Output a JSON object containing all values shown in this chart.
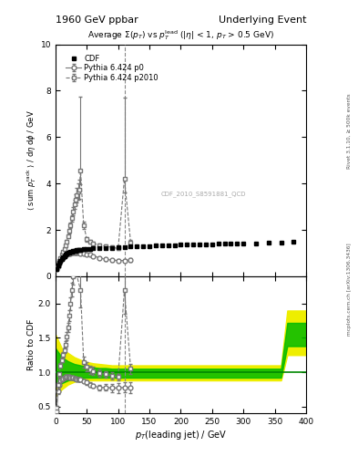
{
  "title_left": "1960 GeV ppbar",
  "title_right": "Underlying Event",
  "plot_title": "Average $\\Sigma(p_T)$ vs $p_T^{\\mathrm{lead}}$ (|$\\eta$| < 1, $p_T$ > 0.5 GeV)",
  "xlabel": "$p_T$(leading jet) / GeV",
  "ylabel_main": "$\\langle$ sum $p_T^{\\rm rack}$ $\\rangle$ / d$\\eta$ d$\\phi$ / GeV",
  "ylabel_ratio": "Ratio to CDF",
  "watermark": "CDF_2010_S8591881_QCD",
  "rivet_label": "Rivet 3.1.10, ≥ 500k events",
  "mcplots_label": "mcplots.cern.ch [arXiv:1306.3436]",
  "xlim": [
    0,
    400
  ],
  "ylim_main": [
    0,
    10
  ],
  "ylim_ratio": [
    0.4,
    2.4
  ],
  "vline_x": 110,
  "cdf_x": [
    2,
    4,
    6,
    8,
    10,
    12,
    14,
    16,
    18,
    20,
    22,
    24,
    26,
    28,
    30,
    32,
    34,
    36,
    38,
    40,
    45,
    50,
    55,
    60,
    70,
    80,
    90,
    100,
    110,
    120,
    130,
    140,
    150,
    160,
    170,
    180,
    190,
    200,
    210,
    220,
    230,
    240,
    250,
    260,
    270,
    280,
    290,
    300,
    320,
    340,
    360,
    380
  ],
  "cdf_y": [
    0.32,
    0.45,
    0.58,
    0.68,
    0.75,
    0.83,
    0.88,
    0.92,
    0.96,
    1.0,
    1.02,
    1.05,
    1.07,
    1.08,
    1.1,
    1.11,
    1.12,
    1.13,
    1.14,
    1.15,
    1.17,
    1.18,
    1.19,
    1.2,
    1.21,
    1.22,
    1.23,
    1.25,
    1.27,
    1.28,
    1.29,
    1.3,
    1.31,
    1.32,
    1.33,
    1.34,
    1.35,
    1.36,
    1.37,
    1.38,
    1.38,
    1.39,
    1.39,
    1.4,
    1.4,
    1.41,
    1.41,
    1.42,
    1.43,
    1.44,
    1.45,
    1.5
  ],
  "p0_x": [
    2,
    4,
    6,
    8,
    10,
    12,
    14,
    16,
    18,
    20,
    22,
    24,
    26,
    28,
    30,
    32,
    34,
    36,
    38,
    40,
    45,
    50,
    55,
    60,
    70,
    80,
    90,
    100,
    110,
    120
  ],
  "p0_y": [
    0.32,
    0.44,
    0.55,
    0.65,
    0.73,
    0.8,
    0.86,
    0.9,
    0.93,
    0.96,
    0.98,
    0.99,
    1.0,
    1.01,
    1.01,
    1.01,
    1.01,
    1.0,
    1.0,
    0.99,
    0.97,
    0.95,
    0.92,
    0.88,
    0.8,
    0.73,
    0.7,
    0.68,
    0.68,
    0.7
  ],
  "p0_yerr": [
    0.02,
    0.02,
    0.02,
    0.02,
    0.02,
    0.02,
    0.02,
    0.02,
    0.02,
    0.02,
    0.02,
    0.02,
    0.02,
    0.02,
    0.02,
    0.02,
    0.02,
    0.02,
    0.02,
    0.02,
    0.02,
    0.03,
    0.03,
    0.03,
    0.04,
    0.05,
    0.06,
    0.07,
    0.07,
    0.08
  ],
  "p2010_x": [
    2,
    4,
    6,
    8,
    10,
    12,
    14,
    16,
    18,
    20,
    22,
    24,
    26,
    28,
    30,
    32,
    34,
    36,
    38,
    40,
    45,
    50,
    55,
    60,
    70,
    80,
    90,
    100,
    110,
    120
  ],
  "p2010_y": [
    0.35,
    0.5,
    0.65,
    0.8,
    0.92,
    1.05,
    1.18,
    1.32,
    1.5,
    1.72,
    1.95,
    2.2,
    2.5,
    2.8,
    3.1,
    3.3,
    3.5,
    3.65,
    3.75,
    4.55,
    2.2,
    1.6,
    1.48,
    1.42,
    1.35,
    1.3,
    1.25,
    1.2,
    4.2,
    1.45
  ],
  "p2010_yerr_lo": [
    0.02,
    0.02,
    0.03,
    0.03,
    0.03,
    0.04,
    0.05,
    0.06,
    0.07,
    0.09,
    0.1,
    0.12,
    0.15,
    0.18,
    0.2,
    0.25,
    0.3,
    0.35,
    0.4,
    0.6,
    0.15,
    0.1,
    0.08,
    0.08,
    0.07,
    0.07,
    0.07,
    0.07,
    0.6,
    0.1
  ],
  "p2010_yerr_hi": [
    0.02,
    0.02,
    0.03,
    0.03,
    0.03,
    0.04,
    0.05,
    0.06,
    0.07,
    0.09,
    0.1,
    0.12,
    0.15,
    0.18,
    0.2,
    0.25,
    0.3,
    0.35,
    0.4,
    3.2,
    0.15,
    0.1,
    0.08,
    0.08,
    0.07,
    0.07,
    0.07,
    0.07,
    3.5,
    0.1
  ],
  "ratio_p0_x": [
    2,
    4,
    6,
    8,
    10,
    12,
    14,
    16,
    18,
    20,
    22,
    24,
    26,
    28,
    30,
    32,
    34,
    36,
    38,
    40,
    45,
    50,
    55,
    60,
    70,
    80,
    90,
    100,
    110,
    120
  ],
  "ratio_p0_y": [
    0.43,
    0.72,
    0.82,
    0.88,
    0.9,
    0.91,
    0.92,
    0.93,
    0.93,
    0.93,
    0.93,
    0.92,
    0.92,
    0.92,
    0.91,
    0.91,
    0.9,
    0.9,
    0.9,
    0.89,
    0.87,
    0.85,
    0.82,
    0.8,
    0.78,
    0.78,
    0.77,
    0.77,
    0.78,
    0.78
  ],
  "ratio_p0_err": [
    0.05,
    0.04,
    0.03,
    0.03,
    0.02,
    0.02,
    0.02,
    0.02,
    0.02,
    0.02,
    0.02,
    0.02,
    0.02,
    0.02,
    0.02,
    0.02,
    0.02,
    0.02,
    0.02,
    0.02,
    0.02,
    0.03,
    0.03,
    0.03,
    0.04,
    0.05,
    0.06,
    0.07,
    0.07,
    0.08
  ],
  "ratio_p2010_x": [
    2,
    4,
    6,
    8,
    10,
    12,
    14,
    16,
    18,
    20,
    22,
    24,
    26,
    28,
    30,
    32,
    34,
    36,
    38,
    40,
    45,
    50,
    55,
    60,
    70,
    80,
    90,
    100,
    110,
    120
  ],
  "ratio_p2010_y": [
    0.48,
    0.82,
    0.97,
    1.1,
    1.18,
    1.25,
    1.32,
    1.4,
    1.52,
    1.65,
    1.82,
    2.0,
    2.2,
    2.4,
    2.55,
    0.0,
    0.0,
    0.0,
    0.0,
    2.2,
    1.15,
    1.08,
    1.04,
    1.02,
    0.99,
    0.97,
    0.95,
    0.93,
    2.2,
    1.05
  ],
  "ratio_p2010_err": [
    0.03,
    0.03,
    0.03,
    0.03,
    0.03,
    0.04,
    0.04,
    0.05,
    0.06,
    0.07,
    0.08,
    0.09,
    0.1,
    0.12,
    0.14,
    0.0,
    0.0,
    0.0,
    0.0,
    0.25,
    0.08,
    0.07,
    0.06,
    0.06,
    0.05,
    0.05,
    0.05,
    0.05,
    0.35,
    0.07
  ],
  "band_x": [
    0,
    10,
    20,
    30,
    40,
    50,
    60,
    70,
    80,
    90,
    100,
    120,
    140,
    160,
    180,
    200,
    220,
    240,
    260,
    280,
    300,
    320,
    340,
    360,
    370,
    390,
    400
  ],
  "band_yellow_lo": [
    0.65,
    0.75,
    0.82,
    0.86,
    0.88,
    0.88,
    0.88,
    0.88,
    0.88,
    0.88,
    0.88,
    0.88,
    0.88,
    0.88,
    0.88,
    0.88,
    0.88,
    0.88,
    0.88,
    0.88,
    0.88,
    0.88,
    0.88,
    0.88,
    1.25,
    1.25,
    1.25
  ],
  "band_yellow_hi": [
    1.55,
    1.35,
    1.28,
    1.22,
    1.18,
    1.15,
    1.13,
    1.12,
    1.11,
    1.1,
    1.1,
    1.1,
    1.1,
    1.1,
    1.1,
    1.1,
    1.1,
    1.1,
    1.1,
    1.1,
    1.1,
    1.1,
    1.1,
    1.1,
    1.9,
    1.9,
    1.9
  ],
  "band_green_lo": [
    0.78,
    0.84,
    0.88,
    0.91,
    0.92,
    0.92,
    0.92,
    0.92,
    0.92,
    0.92,
    0.92,
    0.92,
    0.92,
    0.92,
    0.92,
    0.92,
    0.92,
    0.92,
    0.92,
    0.92,
    0.92,
    0.92,
    0.92,
    0.92,
    1.38,
    1.38,
    1.38
  ],
  "band_green_hi": [
    1.35,
    1.22,
    1.16,
    1.12,
    1.1,
    1.08,
    1.07,
    1.06,
    1.06,
    1.05,
    1.05,
    1.05,
    1.05,
    1.05,
    1.05,
    1.05,
    1.05,
    1.05,
    1.05,
    1.05,
    1.05,
    1.05,
    1.05,
    1.05,
    1.72,
    1.72,
    1.72
  ],
  "color_cdf": "#000000",
  "color_p0": "#777777",
  "color_p2010": "#777777",
  "color_green": "#00bb00",
  "color_yellow": "#eeee00",
  "color_vline": "#888888",
  "color_ratio_line": "#008800",
  "marker_size": 3.5,
  "legend_fontsize": 6.0,
  "title_fontsize": 6.5,
  "axis_fontsize": 7.0,
  "tick_fontsize": 6.5
}
